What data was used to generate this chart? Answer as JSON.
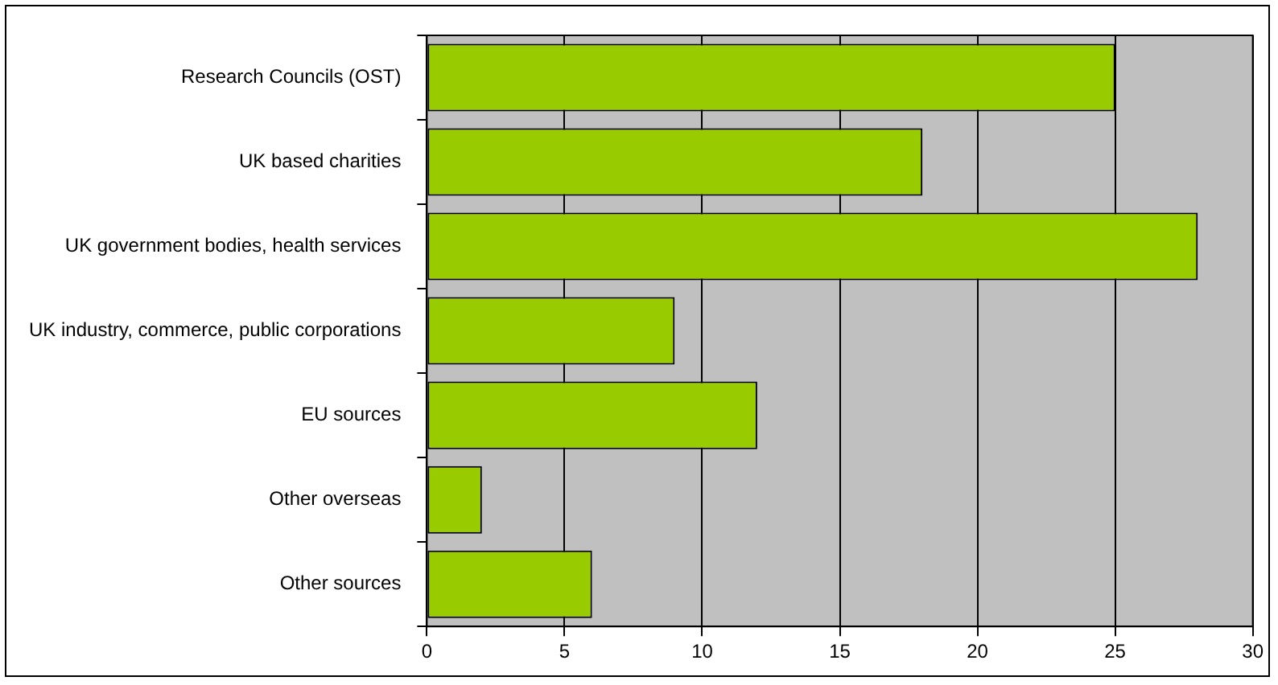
{
  "chart_data": {
    "type": "bar",
    "orientation": "horizontal",
    "categories": [
      "Research Councils (OST)",
      "UK based charities",
      "UK government bodies, health services",
      "UK industry, commerce, public corporations",
      "EU sources",
      "Other overseas",
      "Other sources"
    ],
    "values": [
      25,
      18,
      28,
      9,
      12,
      2,
      6
    ],
    "color": "#99cc00",
    "xlim": [
      0,
      30
    ],
    "xticks": [
      0,
      5,
      10,
      15,
      20,
      25,
      30
    ],
    "grid": "x",
    "legend": false
  }
}
